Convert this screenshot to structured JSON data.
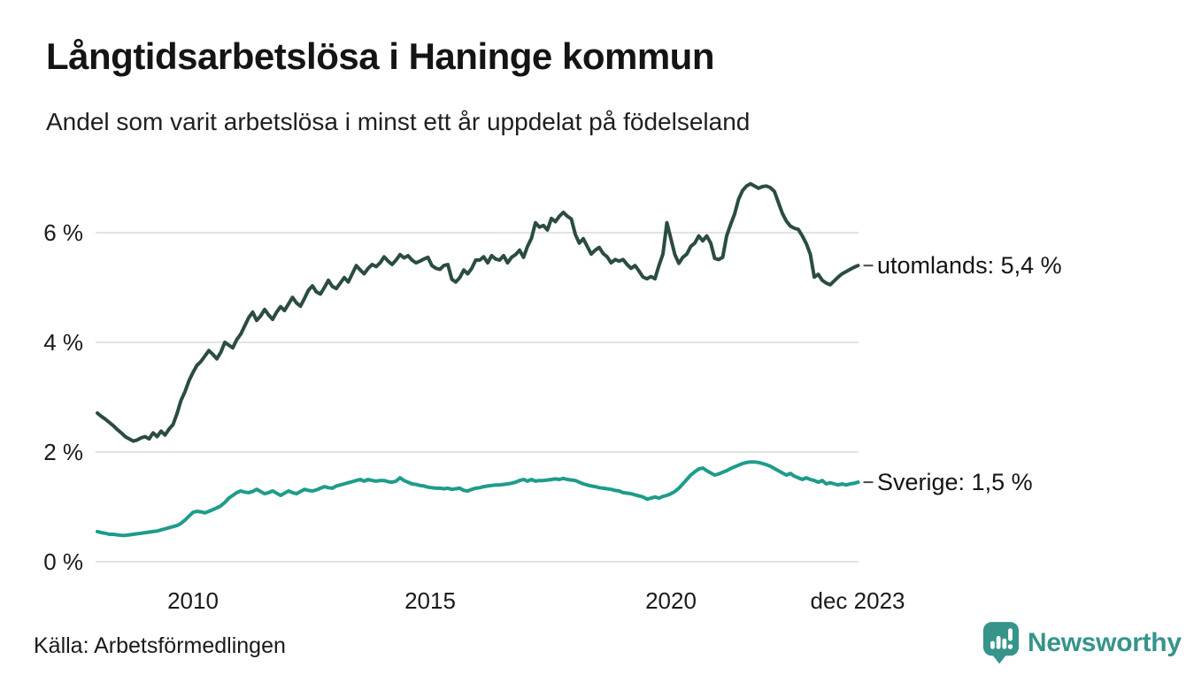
{
  "header": {
    "title": "Långtidsarbetslösa i Haninge kommun",
    "subtitle": "Andel som varit arbetslösa i minst ett år uppdelat på födelseland"
  },
  "footer": {
    "source": "Källa: Arbetsförmedlingen",
    "brand": "Newsworthy"
  },
  "colors": {
    "series_utomlands": "#2b4c41",
    "series_sverige": "#1e9c8b",
    "grid": "#e3e3e3",
    "connector": "#4a4a4a",
    "brand_teal": "#36948b",
    "text": "#141414"
  },
  "chart_data": {
    "type": "line",
    "title": "Långtidsarbetslösa i Haninge kommun",
    "subtitle": "Andel som varit arbetslösa i minst ett år uppdelat på födelseland",
    "unit": "%",
    "grid": true,
    "legend_position": "end-of-line-labels",
    "x_axis": {
      "start": "2008-01",
      "end": "2023-12",
      "frequency": "monthly",
      "ticks": [
        "2010",
        "2015",
        "2020",
        "dec 2023"
      ]
    },
    "y_axis": {
      "ticks": [
        "6 %",
        "4 %",
        "2 %",
        "0 %"
      ],
      "tick_values": [
        6,
        4,
        2,
        0
      ],
      "ylim": [
        0,
        7.2
      ]
    },
    "series": [
      {
        "name": "utomlands",
        "label": "utomlands: 5,4 %",
        "last_value": 5.4,
        "color": "#2b4c41",
        "values": [
          2.71,
          2.65,
          2.6,
          2.54,
          2.48,
          2.41,
          2.35,
          2.28,
          2.24,
          2.2,
          2.22,
          2.26,
          2.28,
          2.24,
          2.35,
          2.28,
          2.38,
          2.31,
          2.42,
          2.5,
          2.7,
          2.94,
          3.1,
          3.3,
          3.45,
          3.58,
          3.65,
          3.75,
          3.85,
          3.78,
          3.7,
          3.82,
          4.0,
          3.95,
          3.9,
          4.05,
          4.15,
          4.3,
          4.45,
          4.55,
          4.4,
          4.48,
          4.6,
          4.5,
          4.42,
          4.55,
          4.65,
          4.58,
          4.7,
          4.82,
          4.72,
          4.66,
          4.8,
          4.95,
          5.03,
          4.92,
          4.88,
          5.0,
          5.13,
          5.02,
          4.98,
          5.08,
          5.18,
          5.1,
          5.25,
          5.4,
          5.32,
          5.25,
          5.35,
          5.42,
          5.38,
          5.45,
          5.56,
          5.48,
          5.42,
          5.5,
          5.6,
          5.54,
          5.58,
          5.5,
          5.45,
          5.48,
          5.52,
          5.55,
          5.4,
          5.35,
          5.33,
          5.4,
          5.42,
          5.15,
          5.1,
          5.18,
          5.32,
          5.25,
          5.35,
          5.5,
          5.5,
          5.56,
          5.45,
          5.58,
          5.52,
          5.5,
          5.58,
          5.45,
          5.55,
          5.6,
          5.68,
          5.55,
          5.75,
          5.9,
          6.18,
          6.1,
          6.13,
          6.05,
          6.26,
          6.2,
          6.3,
          6.37,
          6.3,
          6.25,
          5.97,
          5.81,
          5.89,
          5.75,
          5.61,
          5.68,
          5.73,
          5.62,
          5.56,
          5.45,
          5.51,
          5.48,
          5.51,
          5.42,
          5.35,
          5.4,
          5.3,
          5.19,
          5.16,
          5.2,
          5.16,
          5.4,
          5.61,
          6.18,
          5.89,
          5.6,
          5.44,
          5.55,
          5.61,
          5.75,
          5.81,
          5.94,
          5.85,
          5.94,
          5.81,
          5.53,
          5.51,
          5.55,
          5.94,
          6.15,
          6.34,
          6.61,
          6.77,
          6.85,
          6.89,
          6.85,
          6.81,
          6.84,
          6.85,
          6.82,
          6.75,
          6.55,
          6.35,
          6.21,
          6.12,
          6.08,
          6.06,
          5.94,
          5.8,
          5.61,
          5.19,
          5.24,
          5.13,
          5.08,
          5.05,
          5.12,
          5.19,
          5.25,
          5.29,
          5.33,
          5.37,
          5.4
        ]
      },
      {
        "name": "sverige",
        "label": "Sverige: 1,5 %",
        "last_value": 1.5,
        "color": "#1e9c8b",
        "values": [
          0.55,
          0.53,
          0.52,
          0.5,
          0.5,
          0.49,
          0.48,
          0.48,
          0.49,
          0.5,
          0.51,
          0.52,
          0.53,
          0.54,
          0.55,
          0.56,
          0.58,
          0.6,
          0.62,
          0.64,
          0.66,
          0.7,
          0.76,
          0.83,
          0.9,
          0.92,
          0.91,
          0.89,
          0.92,
          0.95,
          0.98,
          1.02,
          1.08,
          1.16,
          1.21,
          1.26,
          1.29,
          1.27,
          1.26,
          1.28,
          1.32,
          1.28,
          1.24,
          1.26,
          1.29,
          1.25,
          1.21,
          1.25,
          1.29,
          1.26,
          1.24,
          1.28,
          1.32,
          1.3,
          1.29,
          1.31,
          1.34,
          1.37,
          1.35,
          1.34,
          1.38,
          1.4,
          1.42,
          1.44,
          1.46,
          1.48,
          1.5,
          1.47,
          1.5,
          1.48,
          1.47,
          1.48,
          1.48,
          1.46,
          1.45,
          1.47,
          1.53,
          1.48,
          1.45,
          1.42,
          1.41,
          1.39,
          1.38,
          1.36,
          1.35,
          1.34,
          1.34,
          1.33,
          1.34,
          1.32,
          1.33,
          1.34,
          1.3,
          1.29,
          1.32,
          1.34,
          1.35,
          1.37,
          1.38,
          1.39,
          1.4,
          1.4,
          1.41,
          1.42,
          1.43,
          1.45,
          1.48,
          1.5,
          1.47,
          1.5,
          1.47,
          1.48,
          1.48,
          1.49,
          1.5,
          1.51,
          1.5,
          1.52,
          1.5,
          1.49,
          1.48,
          1.45,
          1.42,
          1.4,
          1.38,
          1.37,
          1.35,
          1.34,
          1.33,
          1.32,
          1.3,
          1.29,
          1.26,
          1.25,
          1.24,
          1.22,
          1.2,
          1.18,
          1.14,
          1.16,
          1.18,
          1.16,
          1.19,
          1.21,
          1.24,
          1.28,
          1.34,
          1.42,
          1.5,
          1.58,
          1.64,
          1.69,
          1.71,
          1.66,
          1.62,
          1.58,
          1.6,
          1.63,
          1.66,
          1.7,
          1.73,
          1.76,
          1.79,
          1.81,
          1.82,
          1.82,
          1.81,
          1.79,
          1.77,
          1.74,
          1.7,
          1.66,
          1.62,
          1.58,
          1.61,
          1.56,
          1.53,
          1.5,
          1.53,
          1.5,
          1.48,
          1.45,
          1.48,
          1.42,
          1.44,
          1.42,
          1.4,
          1.42,
          1.4,
          1.42,
          1.43,
          1.45
        ]
      }
    ]
  }
}
